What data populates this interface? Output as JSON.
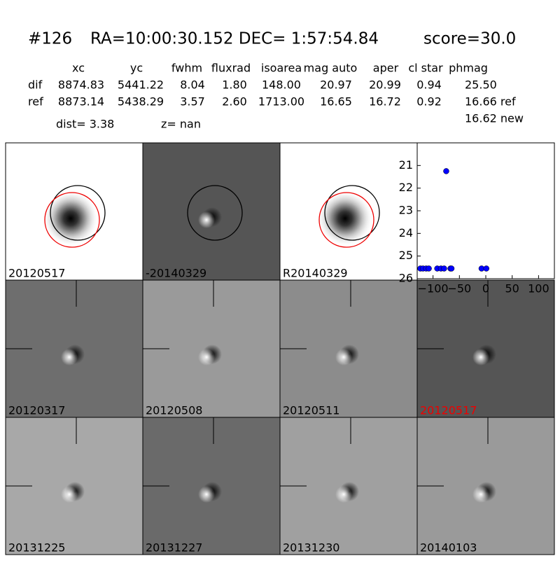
{
  "header": {
    "id": "#126",
    "coords": "RA=10:00:30.152 DEC= 1:57:54.84",
    "score": "score=30.0"
  },
  "table": {
    "columns": [
      "xc",
      "yc",
      "fwhm",
      "fluxrad",
      "isoarea",
      "mag auto",
      "aper",
      "cl star",
      "phmag"
    ],
    "rows": [
      [
        "dif",
        "8874.83",
        "5441.22",
        "8.04",
        "1.80",
        "148.00",
        "20.97",
        "20.99",
        "0.94",
        "25.50"
      ],
      [
        "ref",
        "8873.14",
        "5438.29",
        "3.57",
        "2.60",
        "1713.00",
        "16.65",
        "16.72",
        "0.92",
        "16.66 ref"
      ]
    ],
    "extra": "16.62 new"
  },
  "dist": "dist=  3.38",
  "z": "z=   nan",
  "top_stamps": [
    "20120517",
    "-20140329",
    "R20140329"
  ],
  "stamps": [
    "20120317",
    "20120508",
    "20120511",
    "20120517",
    "20131225",
    "20131227",
    "20131230",
    "20140103"
  ],
  "chart_data": {
    "type": "scatter",
    "color": "#0000ff",
    "x": [
      -124,
      -119,
      -113,
      -108,
      -92,
      -85,
      -79,
      -75,
      -67,
      -65,
      -8,
      1
    ],
    "values": [
      25.55,
      25.55,
      25.55,
      25.55,
      25.55,
      25.55,
      25.55,
      21.25,
      25.55,
      25.55,
      25.55,
      25.55
    ],
    "xlim": [
      -130,
      130
    ],
    "ylim": [
      26,
      20
    ],
    "xticks": [
      {
        "value": -100,
        "label": "−100"
      },
      {
        "value": -50,
        "label": "−50"
      },
      0,
      50,
      100
    ],
    "yticks": [
      21,
      22,
      23,
      24,
      25,
      26
    ]
  }
}
